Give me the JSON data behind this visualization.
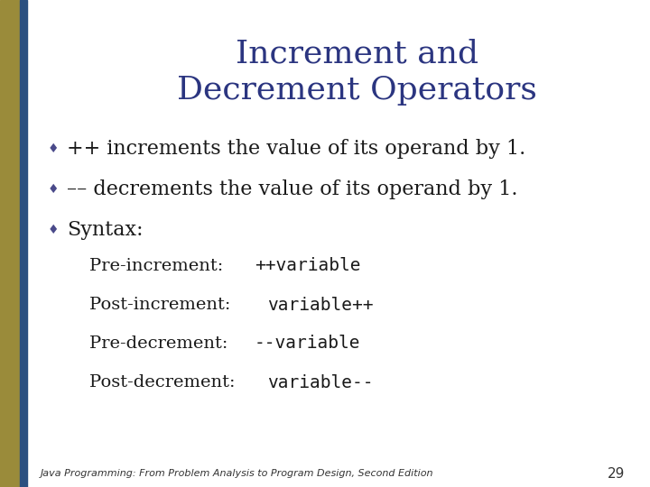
{
  "title_line1": "Increment and",
  "title_line2": "Decrement Operators",
  "title_color": "#2B3580",
  "background_color": "#FFFFFF",
  "left_bar_gold": "#9A8B3A",
  "left_bar_blue": "#2B5080",
  "bullet_color": "#4A4A8A",
  "bullet_char": "♦",
  "body_text_color": "#1a1a1a",
  "code_color": "#1a1a1a",
  "bullet_items": [
    {
      "operator": "++ ",
      "text": "increments the value of its operand by 1."
    },
    {
      "operator": "–– ",
      "text": "decrements the value of its operand by 1."
    },
    {
      "operator": "",
      "text": "Syntax:"
    }
  ],
  "syntax_items": [
    {
      "label": "Pre-increment: ",
      "code": "++variable"
    },
    {
      "label": "Post-increment: ",
      "code": "variable++"
    },
    {
      "label": "Pre-decrement: ",
      "code": "--variable"
    },
    {
      "label": "Post-decrement: ",
      "code": "variable--"
    }
  ],
  "footer_text": "Java Programming: From Problem Analysis to Program Design, Second Edition",
  "page_number": "29",
  "title_fontsize": 26,
  "bullet_fontsize": 16,
  "syntax_fontsize": 14,
  "footer_fontsize": 8
}
